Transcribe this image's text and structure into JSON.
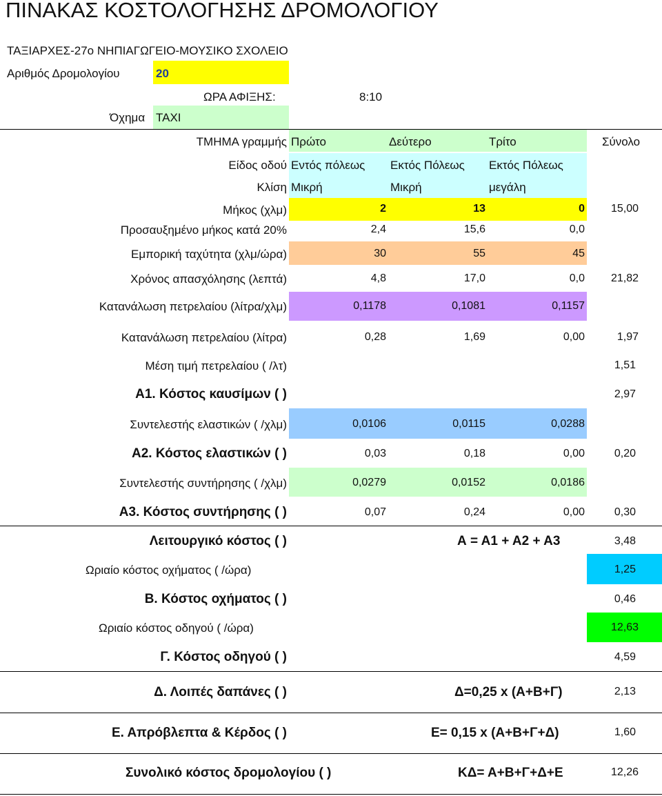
{
  "title": "ΠΙΝΑΚΑΣ ΚΟΣΤΟΛΟΓΗΣΗΣ ΔΡΟΜΟΛΟΓΙΟΥ",
  "school": "ΤΑΞΙΑΡΧΕΣ-27ο ΝΗΠΙΑΓΩΓΕΙΟ-ΜΟΥΣΙΚΟ ΣΧΟΛΕΙΟ",
  "route_label": "Αριθμός Δρομολογίου",
  "route_number": "20",
  "arrival_label": "ΩΡΑ ΑΦΙΞΗΣ:",
  "arrival_time": "8:10",
  "vehicle_label": "Όχημα",
  "vehicle": "TAXI",
  "segment_label": "ΤΜΗΜΑ γραμμής",
  "segments": [
    "Πρώτο",
    "Δεύτερο",
    "Τρίτο"
  ],
  "total_label": "Σύνολο",
  "road_type_label": "Είδος οδού",
  "road_types": [
    "Εντός πόλεως",
    "Εκτός Πόλεως",
    "Εκτός Πόλεως"
  ],
  "slope_label": "Κλίση",
  "slopes": [
    "Μικρή",
    "Μικρή",
    "μεγάλη"
  ],
  "colors": {
    "yellow": "#ffff00",
    "light_green": "#ccffcc",
    "light_cyan": "#ccffff",
    "peach": "#ffcc99",
    "purple": "#cc99ff",
    "light_blue": "#99ccff",
    "cyan": "#00ccff",
    "green": "#00ff00"
  },
  "rows": {
    "length": {
      "label": "Μήκος (χλμ)",
      "values": [
        "2",
        "13",
        "0"
      ],
      "total": "15,00"
    },
    "inc_length": {
      "label": "Προσαυξημένο μήκος κατά 20%",
      "values": [
        "2,4",
        "15,6",
        "0,0"
      ],
      "total": ""
    },
    "speed": {
      "label": "Εμπορική ταχύτητα (χλμ/ώρα)",
      "values": [
        "30",
        "55",
        "45"
      ],
      "total": ""
    },
    "time": {
      "label": "Χρόνος απασχόλησης (λεπτά)",
      "values": [
        "4,8",
        "17,0",
        "0,0"
      ],
      "total": "21,82"
    },
    "fuel_rate": {
      "label": "Κατανάλωση πετρελαίου (λίτρα/χλμ)",
      "values": [
        "0,1178",
        "0,1081",
        "0,1157"
      ],
      "total": ""
    },
    "fuel": {
      "label": "Κατανάλωση πετρελαίου (λίτρα)",
      "values": [
        "0,28",
        "1,69",
        "0,00"
      ],
      "total": "1,97"
    },
    "fuel_price": {
      "label": "Μέση τιμή πετρελαίου  ( /λτ)",
      "values": [
        "",
        "",
        ""
      ],
      "total": "1,51"
    },
    "a1": {
      "label": "Α1. Κόστος καυσίμων  ( )",
      "values": [
        "",
        "",
        ""
      ],
      "total": "2,97"
    },
    "tire_coef": {
      "label": "Συντελεστής ελαστικών  ( /χλμ)",
      "values": [
        "0,0106",
        "0,0115",
        "0,0288"
      ],
      "total": ""
    },
    "a2": {
      "label": "Α2. Κόστος ελαστικών  ( )",
      "values": [
        "0,03",
        "0,18",
        "0,00"
      ],
      "total": "0,20"
    },
    "maint_coef": {
      "label": "Συντελεστής συντήρησης  ( /χλμ)",
      "values": [
        "0,0279",
        "0,0152",
        "0,0186"
      ],
      "total": ""
    },
    "a3": {
      "label": "Α3. Κόστος συντήρησης  ( )",
      "values": [
        "0,07",
        "0,24",
        "0,00"
      ],
      "total": "0,30"
    }
  },
  "operating": {
    "label": "Λειτουργικό κόστος  ( )",
    "formula": "Α = Α1 + Α2 + Α3",
    "total": "3,48"
  },
  "vehicle_hourly": {
    "label": "Ωριαίο κόστος οχήματος  ( /ώρα)",
    "total": "1,25"
  },
  "vehicle_cost": {
    "label": "Β. Κόστος οχήματος  ( )",
    "total": "0,46"
  },
  "driver_hourly": {
    "label": "Ωριαίο κόστος οδηγού  ( /ώρα)",
    "total": "12,63"
  },
  "driver_cost": {
    "label": "Γ. Κόστος οδηγού  ( )",
    "total": "4,59"
  },
  "other": {
    "label": "Δ. Λοιπές δαπάνες  ( )",
    "formula": "Δ=0,25 x (Α+Β+Γ)",
    "total": "2,13"
  },
  "profit": {
    "label": "Ε. Απρόβλεπτα & Κέρδος ( )",
    "formula": "Ε= 0,15 x (Α+Β+Γ+Δ)",
    "total": "1,60"
  },
  "route_total": {
    "label": "Συνολικό κόστος δρομολογίου ( )",
    "formula": "ΚΔ= Α+Β+Γ+Δ+Ε",
    "total": "12,26"
  }
}
